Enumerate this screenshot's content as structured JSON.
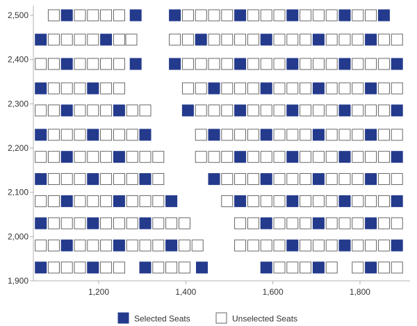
{
  "chart_data": {
    "type": "scatter",
    "x_ticks": [
      1200,
      1400,
      1600,
      1800
    ],
    "y_ticks": [
      1900,
      2000,
      2100,
      2200,
      2300,
      2400,
      2500
    ],
    "x_tick_labels": [
      "1,200",
      "1,400",
      "1,600",
      "1,800"
    ],
    "y_tick_labels": [
      "1,900",
      "2,000",
      "2,100",
      "2,200",
      "2,300",
      "2,400",
      "2,500"
    ],
    "xlim": [
      1050,
      1915
    ],
    "ylim": [
      1900,
      2522
    ],
    "grid": false,
    "legend_position": "bottom",
    "colors": {
      "selected": "#243a8c",
      "unselected": "#ffffff",
      "border": "#555555",
      "axis": "#b0b0b0"
    },
    "seat_width": 26,
    "column_pitch": 30,
    "series": [
      {
        "name": "Selected Seats",
        "rows": [
          {
            "y": 2500,
            "x": [
              1127,
              1285,
              1375,
              1525,
              1645,
              1765,
              1855
            ]
          },
          {
            "y": 2445,
            "x": [
              1067,
              1217,
              1435,
              1585,
              1705,
              1825
            ]
          },
          {
            "y": 2390,
            "x": [
              1127,
              1285,
              1375,
              1525,
              1645,
              1765,
              1885
            ]
          },
          {
            "y": 2335,
            "x": [
              1067,
              1187,
              1465,
              1585,
              1705,
              1825
            ]
          },
          {
            "y": 2285,
            "x": [
              1127,
              1247,
              1405,
              1525,
              1645,
              1765,
              1885
            ]
          },
          {
            "y": 2230,
            "x": [
              1067,
              1187,
              1307,
              1465,
              1585,
              1705,
              1825
            ]
          },
          {
            "y": 2180,
            "x": [
              1127,
              1247,
              1525,
              1645,
              1765,
              1885
            ]
          },
          {
            "y": 2130,
            "x": [
              1067,
              1187,
              1307,
              1465,
              1585,
              1705,
              1825
            ]
          },
          {
            "y": 2080,
            "x": [
              1127,
              1247,
              1367,
              1525,
              1645,
              1765,
              1885
            ]
          },
          {
            "y": 2030,
            "x": [
              1067,
              1187,
              1307,
              1585,
              1705,
              1825
            ]
          },
          {
            "y": 1980,
            "x": [
              1127,
              1247,
              1367,
              1645,
              1765,
              1885
            ]
          },
          {
            "y": 1930,
            "x": [
              1067,
              1187,
              1307,
              1437,
              1585,
              1705,
              1825
            ]
          }
        ]
      },
      {
        "name": "Unselected Seats",
        "rows": [
          {
            "y": 2500,
            "x": [
              1097,
              1157,
              1187,
              1217,
              1247,
              1405,
              1435,
              1465,
              1495,
              1555,
              1585,
              1615,
              1675,
              1705,
              1735,
              1795,
              1825
            ]
          },
          {
            "y": 2445,
            "x": [
              1097,
              1127,
              1157,
              1187,
              1247,
              1275,
              1375,
              1405,
              1465,
              1495,
              1525,
              1555,
              1615,
              1645,
              1675,
              1735,
              1765,
              1795,
              1855,
              1885
            ]
          },
          {
            "y": 2390,
            "x": [
              1067,
              1097,
              1157,
              1187,
              1217,
              1247,
              1405,
              1435,
              1465,
              1495,
              1555,
              1585,
              1615,
              1675,
              1705,
              1735,
              1795,
              1825,
              1855
            ]
          },
          {
            "y": 2335,
            "x": [
              1097,
              1127,
              1157,
              1217,
              1247,
              1405,
              1435,
              1495,
              1525,
              1555,
              1615,
              1645,
              1675,
              1735,
              1765,
              1795,
              1855,
              1885
            ]
          },
          {
            "y": 2285,
            "x": [
              1067,
              1097,
              1157,
              1187,
              1217,
              1277,
              1307,
              1435,
              1465,
              1495,
              1555,
              1585,
              1615,
              1675,
              1705,
              1735,
              1795,
              1825,
              1855
            ]
          },
          {
            "y": 2230,
            "x": [
              1097,
              1127,
              1157,
              1217,
              1247,
              1277,
              1435,
              1495,
              1525,
              1555,
              1615,
              1645,
              1675,
              1735,
              1765,
              1795,
              1855,
              1885
            ]
          },
          {
            "y": 2180,
            "x": [
              1067,
              1097,
              1157,
              1187,
              1217,
              1277,
              1307,
              1337,
              1435,
              1465,
              1495,
              1555,
              1585,
              1615,
              1675,
              1705,
              1735,
              1795,
              1825,
              1855
            ]
          },
          {
            "y": 2130,
            "x": [
              1097,
              1127,
              1157,
              1217,
              1247,
              1277,
              1337,
              1495,
              1525,
              1555,
              1615,
              1645,
              1675,
              1735,
              1765,
              1795,
              1855,
              1885
            ]
          },
          {
            "y": 2080,
            "x": [
              1067,
              1097,
              1157,
              1187,
              1217,
              1277,
              1307,
              1337,
              1495,
              1555,
              1585,
              1615,
              1675,
              1705,
              1735,
              1795,
              1825,
              1855
            ]
          },
          {
            "y": 2030,
            "x": [
              1097,
              1127,
              1157,
              1217,
              1247,
              1277,
              1337,
              1367,
              1397,
              1525,
              1555,
              1615,
              1645,
              1675,
              1735,
              1765,
              1795,
              1855,
              1885
            ]
          },
          {
            "y": 1980,
            "x": [
              1067,
              1097,
              1157,
              1187,
              1217,
              1277,
              1307,
              1337,
              1397,
              1427,
              1525,
              1555,
              1585,
              1615,
              1675,
              1705,
              1735,
              1795,
              1825,
              1855
            ]
          },
          {
            "y": 1930,
            "x": [
              1097,
              1127,
              1157,
              1217,
              1247,
              1337,
              1367,
              1397,
              1615,
              1645,
              1675,
              1735,
              1795,
              1855,
              1885
            ]
          }
        ]
      }
    ],
    "legend": {
      "selected_label": "Selected Seats",
      "unselected_label": "Unselected Seats"
    }
  }
}
